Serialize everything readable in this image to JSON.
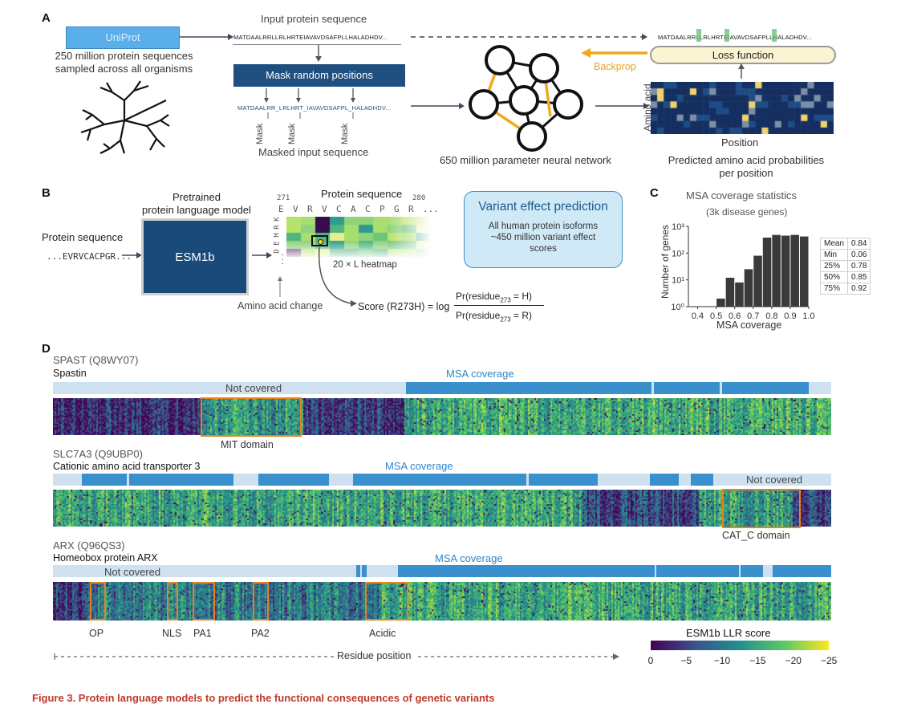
{
  "panels": {
    "a": "A",
    "b": "B",
    "c": "C",
    "d": "D"
  },
  "panelA": {
    "uniprot": "UniProt",
    "uniprot_desc1": "250 million protein sequences",
    "uniprot_desc2": "sampled across all organisms",
    "input_title": "Input protein sequence",
    "input_seq": "MATDAALRRLLRLHRTEIAVAVDSAFPLLHALADHDV...",
    "mask_box": "Mask random positions",
    "masked_seq": "MATDAALRR_LRLHRT_IAVAVDSAFPL_HALADHDV...",
    "mask_label": "Mask",
    "masked_title": "Masked input sequence",
    "network_label": "650 million parameter neural network",
    "output_seq": "MATDAALRRLLRLHRTEIAVAVDSAFPLLHALADHDV...",
    "loss": "Loss function",
    "backprop": "Backprop",
    "amino_axis": "Amino acid",
    "position_axis": "Position",
    "pred_label1": "Predicted amino acid probabilities",
    "pred_label2": "per position"
  },
  "panelB": {
    "protein_seq_label": "Protein sequence",
    "protein_seq": "...EVRVCACPGR...",
    "pretrained1": "Pretrained",
    "pretrained2": "protein language model",
    "esm": "ESM1b",
    "heatmap_title": "Protein sequence",
    "pos_start": "271",
    "pos_end": "280",
    "residues": [
      "E",
      "V",
      "R",
      "V",
      "C",
      "A",
      "C",
      "P",
      "G",
      "R",
      "..."
    ],
    "aa_rows": [
      "K",
      "R",
      "H",
      "E",
      "D",
      "..."
    ],
    "heatmap_label": "20 × L heatmap",
    "aa_change": "Amino acid change",
    "score_lhs": "Score (R273H) = log",
    "score_num": "Pr(residue273 = H)",
    "score_den": "Pr(residue273 = R)",
    "vep_title": "Variant effect prediction",
    "vep_line1": "All human protein isoforms",
    "vep_line2": "~450 million variant effect",
    "vep_line3": "scores"
  },
  "panelC": {
    "title": "MSA coverage statistics",
    "subtitle": "(3k disease genes)",
    "ylabel": "Number of genes",
    "xlabel": "MSA coverage",
    "stats": [
      {
        "k": "Mean",
        "v": "0.84"
      },
      {
        "k": "Min",
        "v": "0.06"
      },
      {
        "k": "25%",
        "v": "0.78"
      },
      {
        "k": "50%",
        "v": "0.85"
      },
      {
        "k": "75%",
        "v": "0.92"
      }
    ]
  },
  "chart_data": {
    "type": "bar",
    "title": "MSA coverage statistics",
    "subtitle": "(3k disease genes)",
    "xlabel": "MSA coverage",
    "ylabel": "Number of genes",
    "yscale": "log",
    "ylim": [
      1,
      1000
    ],
    "xlim": [
      0.35,
      1.0
    ],
    "x_ticks": [
      "0.4",
      "0.5",
      "0.6",
      "0.7",
      "0.8",
      "0.9",
      "1.0"
    ],
    "y_ticks": [
      "10⁰",
      "10¹",
      "10²",
      "10³"
    ],
    "bin_width": 0.05,
    "bin_starts": [
      0.5,
      0.55,
      0.6,
      0.65,
      0.7,
      0.75,
      0.8,
      0.85,
      0.9,
      0.95
    ],
    "values": [
      2,
      12,
      8,
      25,
      80,
      380,
      480,
      450,
      480,
      420
    ]
  },
  "panelD": {
    "proteins": [
      {
        "id": "SPAST (Q8WY07)",
        "name": "Spastin",
        "msa": "MSA coverage",
        "nc": "Not covered",
        "domains": [
          {
            "label": "MIT domain"
          }
        ]
      },
      {
        "id": "SLC7A3 (Q9UBP0)",
        "name": "Cationic amino acid transporter 3",
        "msa": "MSA coverage",
        "nc": "Not covered",
        "domains": [
          {
            "label": "CAT_C domain"
          }
        ]
      },
      {
        "id": "ARX (Q96QS3)",
        "name": "Homeobox protein ARX",
        "msa": "MSA coverage",
        "nc": "Not covered",
        "domains": [
          {
            "label": "OP"
          },
          {
            "label": "NLS"
          },
          {
            "label": "PA1"
          },
          {
            "label": "PA2"
          },
          {
            "label": "Acidic"
          }
        ]
      }
    ],
    "residue_position": "Residue position",
    "colorbar_title": "ESM1b LLR score",
    "colorbar_ticks": [
      "0",
      "−5",
      "−10",
      "−15",
      "−20",
      "−25"
    ]
  },
  "caption": "Figure 3.  Protein language models to predict the functional consequences of genetic variants"
}
